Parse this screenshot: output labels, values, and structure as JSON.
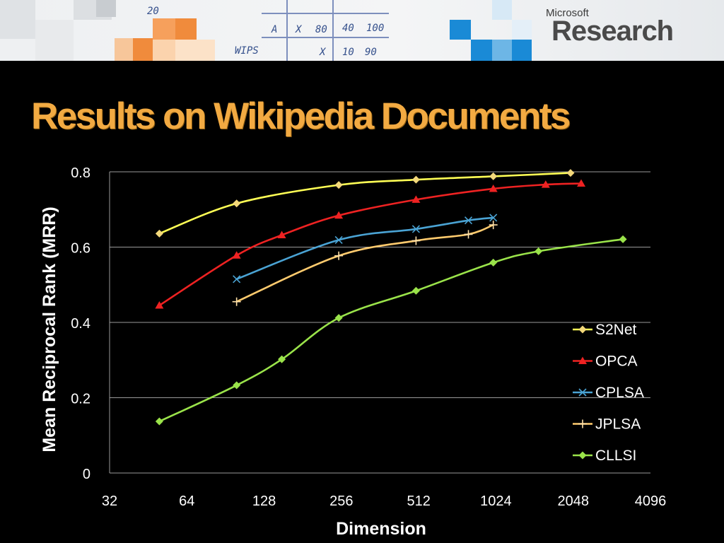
{
  "header": {
    "logo_small": "Microsoft",
    "logo_large": "Research",
    "sketch_text": [
      "A",
      "X",
      "80",
      "40",
      "100",
      "X",
      "10",
      "90",
      "WIPS",
      "20"
    ]
  },
  "slide": {
    "title": "Results on Wikipedia Documents"
  },
  "chart_data": {
    "type": "line",
    "xscale": "log2",
    "x_ticks": [
      32,
      64,
      128,
      256,
      512,
      1024,
      2048,
      4096
    ],
    "x_tick_labels": [
      "32",
      "64",
      "128",
      "256",
      "512",
      "1024",
      "2048",
      "4096"
    ],
    "xlim": [
      32,
      4096
    ],
    "ylim": [
      0,
      0.8
    ],
    "y_ticks": [
      0,
      0.2,
      0.4,
      0.6,
      0.8
    ],
    "y_tick_labels": [
      "0",
      "0.2",
      "0.4",
      "0.6",
      "0.8"
    ],
    "xlabel": "Dimension",
    "ylabel": "Mean Reciprocal Rank (MRR)",
    "grid": "horizontal",
    "legend_position": "right",
    "series": [
      {
        "name": "S2Net",
        "color": "#ffff55",
        "marker": "diamond",
        "marker_color": "#f3d87a",
        "x": [
          50,
          100,
          250,
          500,
          1000,
          2000
        ],
        "y": [
          0.636,
          0.716,
          0.765,
          0.779,
          0.788,
          0.797
        ]
      },
      {
        "name": "OPCA",
        "color": "#ee2222",
        "marker": "triangle",
        "marker_color": "#ee2222",
        "x": [
          50,
          100,
          150,
          250,
          500,
          1000,
          1600,
          2200
        ],
        "y": [
          0.445,
          0.578,
          0.632,
          0.684,
          0.726,
          0.755,
          0.766,
          0.769
        ]
      },
      {
        "name": "CPLSA",
        "color": "#4aa3d4",
        "marker": "x",
        "marker_color": "#4aa3d4",
        "x": [
          100,
          250,
          500,
          800,
          1000
        ],
        "y": [
          0.515,
          0.619,
          0.648,
          0.671,
          0.678
        ]
      },
      {
        "name": "JPLSA",
        "color": "#ffcb6e",
        "marker": "plus",
        "marker_color": "#ffe0a8",
        "x": [
          100,
          250,
          500,
          800,
          1000
        ],
        "y": [
          0.455,
          0.577,
          0.617,
          0.634,
          0.659
        ]
      },
      {
        "name": "CLLSI",
        "color": "#9ae34a",
        "marker": "diamond",
        "marker_color": "#9ae34a",
        "x": [
          50,
          100,
          150,
          250,
          500,
          1000,
          1500,
          3200
        ],
        "y": [
          0.137,
          0.233,
          0.302,
          0.412,
          0.484,
          0.559,
          0.589,
          0.621
        ]
      }
    ]
  }
}
